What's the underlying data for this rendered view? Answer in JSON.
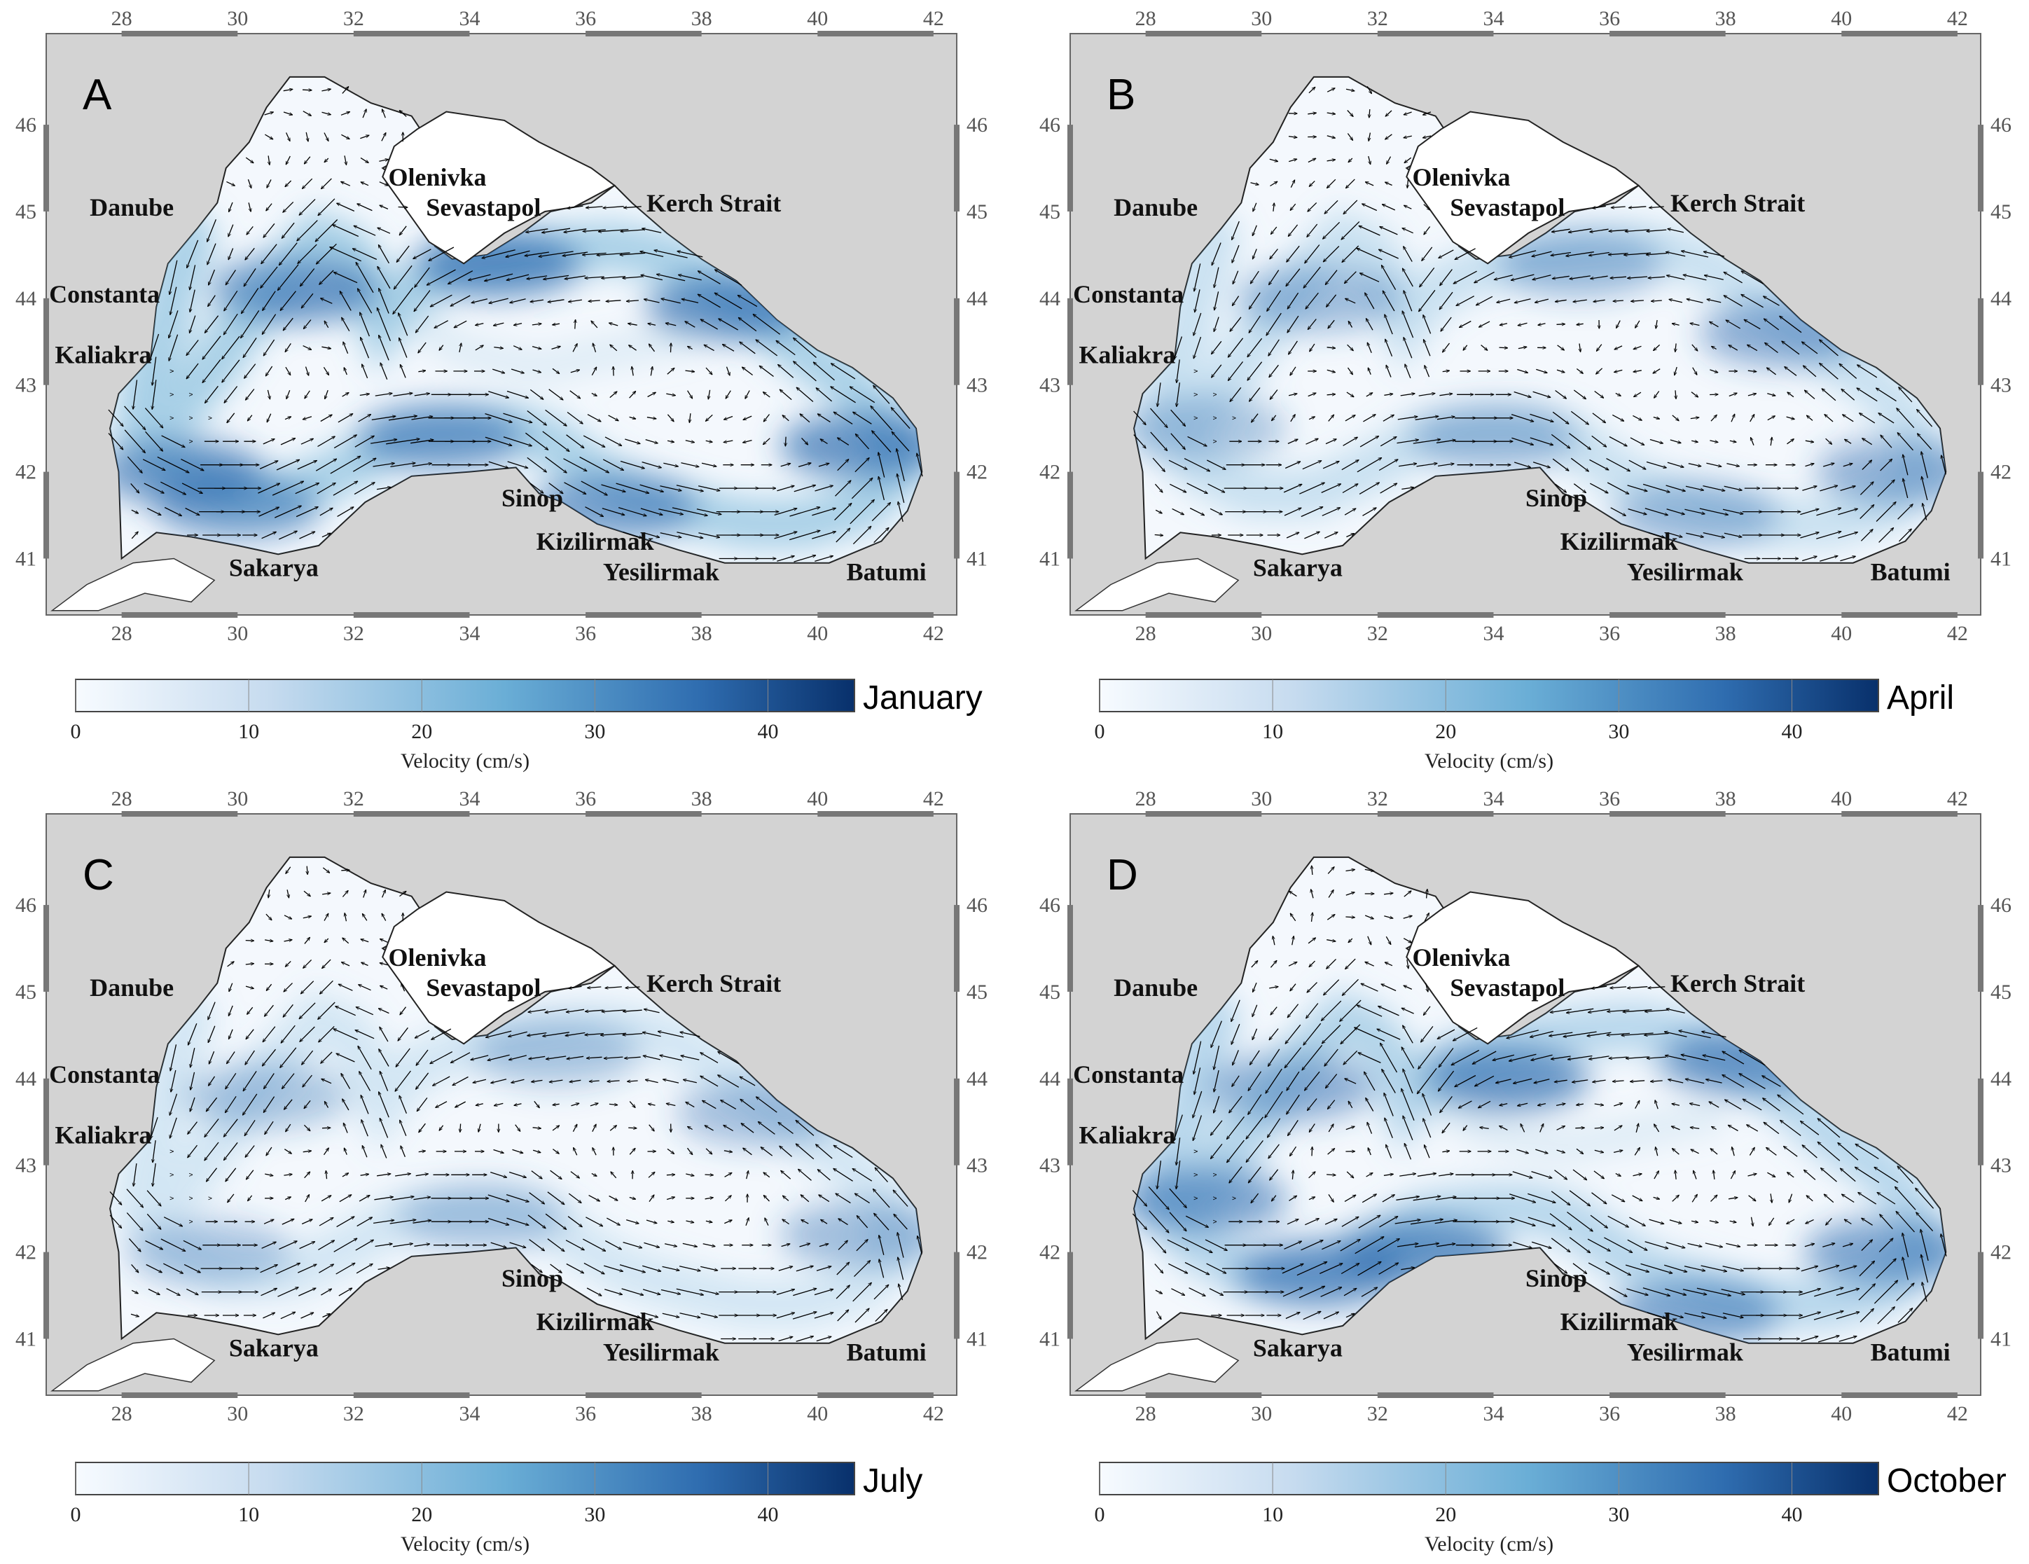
{
  "lon_ticks": [
    "28",
    "30",
    "32",
    "34",
    "36",
    "38",
    "40",
    "42"
  ],
  "lat_ticks": [
    "41",
    "42",
    "43",
    "44",
    "45",
    "46"
  ],
  "places": [
    {
      "key": "danube",
      "label": "Danube"
    },
    {
      "key": "constanta",
      "label": "Constanta"
    },
    {
      "key": "kaliakra",
      "label": "Kaliakra"
    },
    {
      "key": "olenivka",
      "label": "Olenivka"
    },
    {
      "key": "sevastapol",
      "label": "Sevastapol"
    },
    {
      "key": "kerch",
      "label": "Kerch Strait"
    },
    {
      "key": "sinop",
      "label": "Sinop"
    },
    {
      "key": "kizilirmak",
      "label": "Kizilirmak"
    },
    {
      "key": "yesilirmak",
      "label": "Yesilirmak"
    },
    {
      "key": "sakarya",
      "label": "Sakarya"
    },
    {
      "key": "batumi",
      "label": "Batumi"
    }
  ],
  "colorbar": {
    "label": "Velocity (cm/s)",
    "ticks": [
      "0",
      "10",
      "20",
      "30",
      "40"
    ],
    "color_low": "#f7fbff",
    "color_mid": "#6aaed6",
    "color_high": "#08306b"
  },
  "colors": {
    "land": "#d3d3d3",
    "sea": "#f4f8fd",
    "current": "#2f6db0"
  },
  "panels": [
    {
      "letter": "A",
      "month": "January"
    },
    {
      "letter": "B",
      "month": "April"
    },
    {
      "letter": "C",
      "month": "July"
    },
    {
      "letter": "D",
      "month": "October"
    }
  ]
}
